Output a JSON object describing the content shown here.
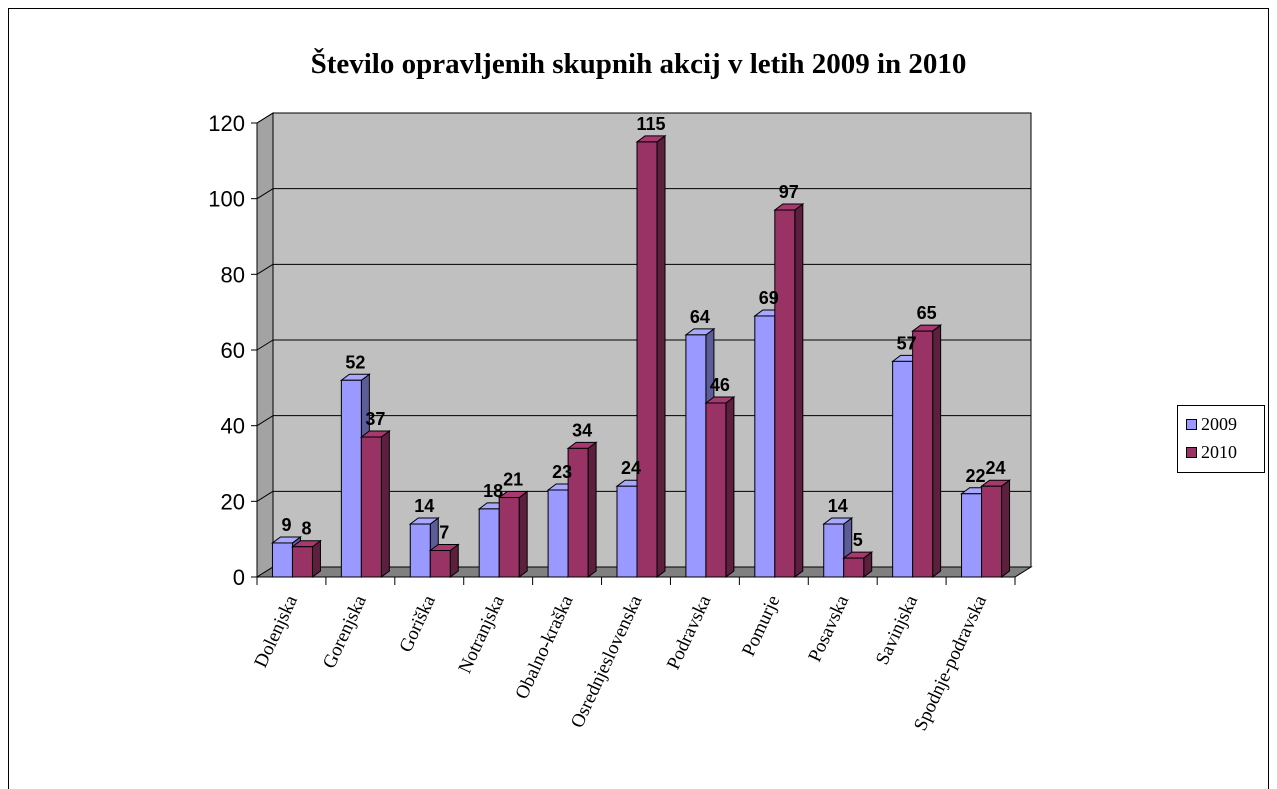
{
  "chart_data": {
    "type": "bar",
    "title": "Število opravljenih skupnih akcij v letih 2009 in 2010",
    "categories": [
      "Dolenjska",
      "Gorenjska",
      "Goriška",
      "Notranjska",
      "Obalno-kraška",
      "Osrednjeslovenska",
      "Podravska",
      "Pomurje",
      "Posavska",
      "Savinjska",
      "Spodnje-podravska"
    ],
    "series": [
      {
        "name": "2009",
        "values": [
          9,
          52,
          14,
          18,
          23,
          24,
          64,
          69,
          14,
          57,
          22
        ],
        "color": "#9999ff"
      },
      {
        "name": "2010",
        "values": [
          8,
          37,
          7,
          21,
          34,
          115,
          46,
          97,
          5,
          65,
          24
        ],
        "color": "#993366"
      }
    ],
    "ylim": [
      0,
      120
    ],
    "yticks": [
      "0",
      "20",
      "40",
      "60",
      "80",
      "100",
      "120"
    ],
    "grid": true,
    "legend_position": "right",
    "colors": {
      "wall": "#c0c0c0",
      "floor": "#808080",
      "gridline": "#000000"
    }
  }
}
